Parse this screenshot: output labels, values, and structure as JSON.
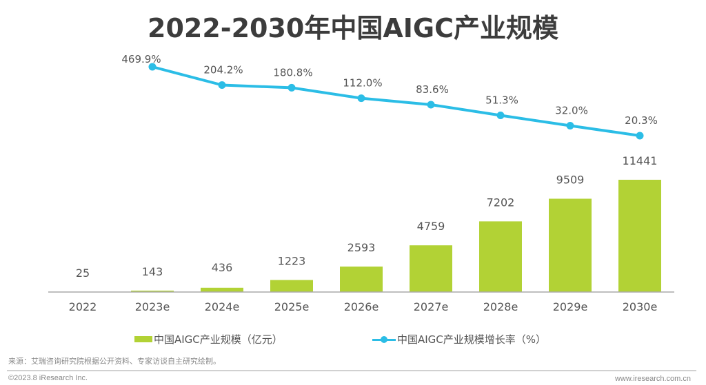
{
  "colors": {
    "bar": "#b2d235",
    "line": "#2bbde6",
    "label": "#555555",
    "axis": "#aaaaaa"
  },
  "chart_data": {
    "type": "bar+line",
    "title": "2022-2030年中国AIGC产业规模",
    "categories": [
      "2022",
      "2023e",
      "2024e",
      "2025e",
      "2026e",
      "2027e",
      "2028e",
      "2029e",
      "2030e"
    ],
    "series": [
      {
        "name": "中国AIGC产业规模（亿元）",
        "type": "bar",
        "values": [
          25,
          143,
          436,
          1223,
          2593,
          4759,
          7202,
          9509,
          11441
        ],
        "labels": [
          "25",
          "143",
          "436",
          "1223",
          "2593",
          "4759",
          "7202",
          "9509",
          "11441"
        ]
      },
      {
        "name": "中国AIGC产业规模增长率（%）",
        "type": "line",
        "values": [
          null,
          469.9,
          204.2,
          180.8,
          112.0,
          83.6,
          51.3,
          32.0,
          20.3
        ],
        "labels": [
          "",
          "469.9%",
          "204.2%",
          "180.8%",
          "112.0%",
          "83.6%",
          "51.3%",
          "32.0%",
          "20.3%"
        ]
      }
    ],
    "xlabel": "",
    "ylabel": "",
    "grid": false,
    "legend": "bottom"
  },
  "legend": {
    "bar_label": "中国AIGC产业规模（亿元）",
    "line_label": "中国AIGC产业规模增长率（%）"
  },
  "footer": {
    "source": "来源：艾瑞咨询研究院根据公开资料、专家访谈自主研究绘制。",
    "copyright": "©2023.8 iResearch Inc.",
    "website": "www.iresearch.com.cn"
  }
}
